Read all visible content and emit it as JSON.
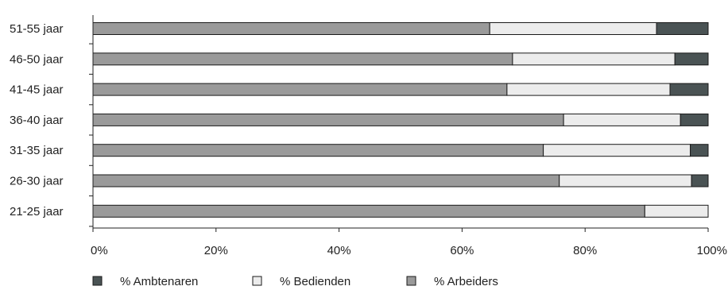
{
  "chart_data": {
    "type": "bar",
    "orientation": "horizontal",
    "stacked": true,
    "categories": [
      "51-55 jaar",
      "46-50 jaar",
      "41-45 jaar",
      "36-40 jaar",
      "31-35 jaar",
      "26-30 jaar",
      "21-25 jaar"
    ],
    "series": [
      {
        "name": "% Arbeiders",
        "color": "#9a9a9a",
        "values": [
          64.5,
          68.2,
          67.3,
          76.5,
          73.2,
          75.8,
          89.7
        ]
      },
      {
        "name": "% Bedienden",
        "color": "#ececec",
        "values": [
          27.1,
          26.4,
          26.5,
          19.0,
          23.9,
          21.5,
          10.3
        ]
      },
      {
        "name": "% Ambtenaren",
        "color": "#4a5354",
        "values": [
          8.4,
          5.4,
          6.2,
          4.5,
          2.9,
          2.7,
          0.0
        ]
      }
    ],
    "xlim": [
      0,
      100
    ],
    "xticks": [
      "0%",
      "20%",
      "40%",
      "60%",
      "80%",
      "100%"
    ],
    "title": "",
    "xlabel": "",
    "ylabel": "",
    "grid": false,
    "legend_position": "bottom-left",
    "legend": [
      "% Ambtenaren",
      "% Bedienden",
      "% Arbeiders"
    ]
  }
}
